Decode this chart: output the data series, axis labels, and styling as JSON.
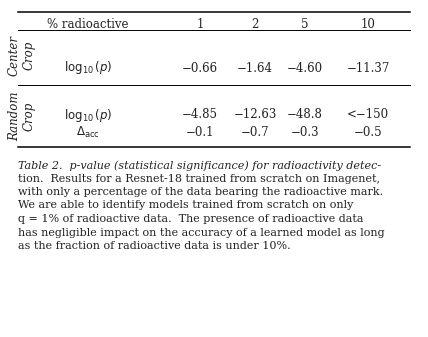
{
  "header_col": "% radioactive",
  "col_values": [
    "1",
    "2",
    "5",
    "10"
  ],
  "section1_label": "Center\nCrop",
  "section1_rows": [
    {
      "metric": "$\\log_{10}(p)$",
      "values": [
        "−0.66",
        "−1.64",
        "−4.60",
        "−11.37"
      ]
    }
  ],
  "section2_label": "Random\nCrop",
  "section2_rows": [
    {
      "metric": "$\\log_{10}(p)$",
      "values": [
        "−4.85",
        "−12.63",
        "−48.8",
        "<−150"
      ]
    },
    {
      "metric": "$\\Delta_{\\rm acc}$",
      "values": [
        "−0.1",
        "−0.7",
        "−0.3",
        "−0.5"
      ]
    }
  ],
  "caption_parts": [
    {
      "text": "Table 2.",
      "style": "italic"
    },
    {
      "text": "  p",
      "style": "italic"
    },
    {
      "text": "-value (statistical significance) for radioactivity detec-",
      "style": "normal"
    },
    {
      "text": "tion.  Results for a Resnet-18 trained from scratch on Imagenet,",
      "style": "normal"
    },
    {
      "text": "with only a percentage of the data bearing the radioactive mark.",
      "style": "normal"
    },
    {
      "text": "We are able to identify models trained from scratch on only",
      "style": "normal"
    },
    {
      "text": "q",
      "style": "italic_q"
    },
    {
      "text": " = 1% of radioactive data.  The presence of radioactive data",
      "style": "normal"
    },
    {
      "text": "has negligible impact on the accuracy of a learned model as long",
      "style": "normal"
    },
    {
      "text": "as the fraction of radioactive data is under 10%.",
      "style": "normal"
    }
  ],
  "caption_lines": [
    "Table 2.  p-value (statistical significance) for radioactivity detec-",
    "tion.  Results for a Resnet-18 trained from scratch on Imagenet,",
    "with only a percentage of the data bearing the radioactive mark.",
    "We are able to identify models trained from scratch on only",
    "q = 1% of radioactive data.  The presence of radioactive data",
    "has negligible impact on the accuracy of a learned model as long",
    "as the fraction of radioactive data is under 10%."
  ],
  "background": "#ffffff",
  "text_color": "#222222",
  "line_color": "#555555"
}
